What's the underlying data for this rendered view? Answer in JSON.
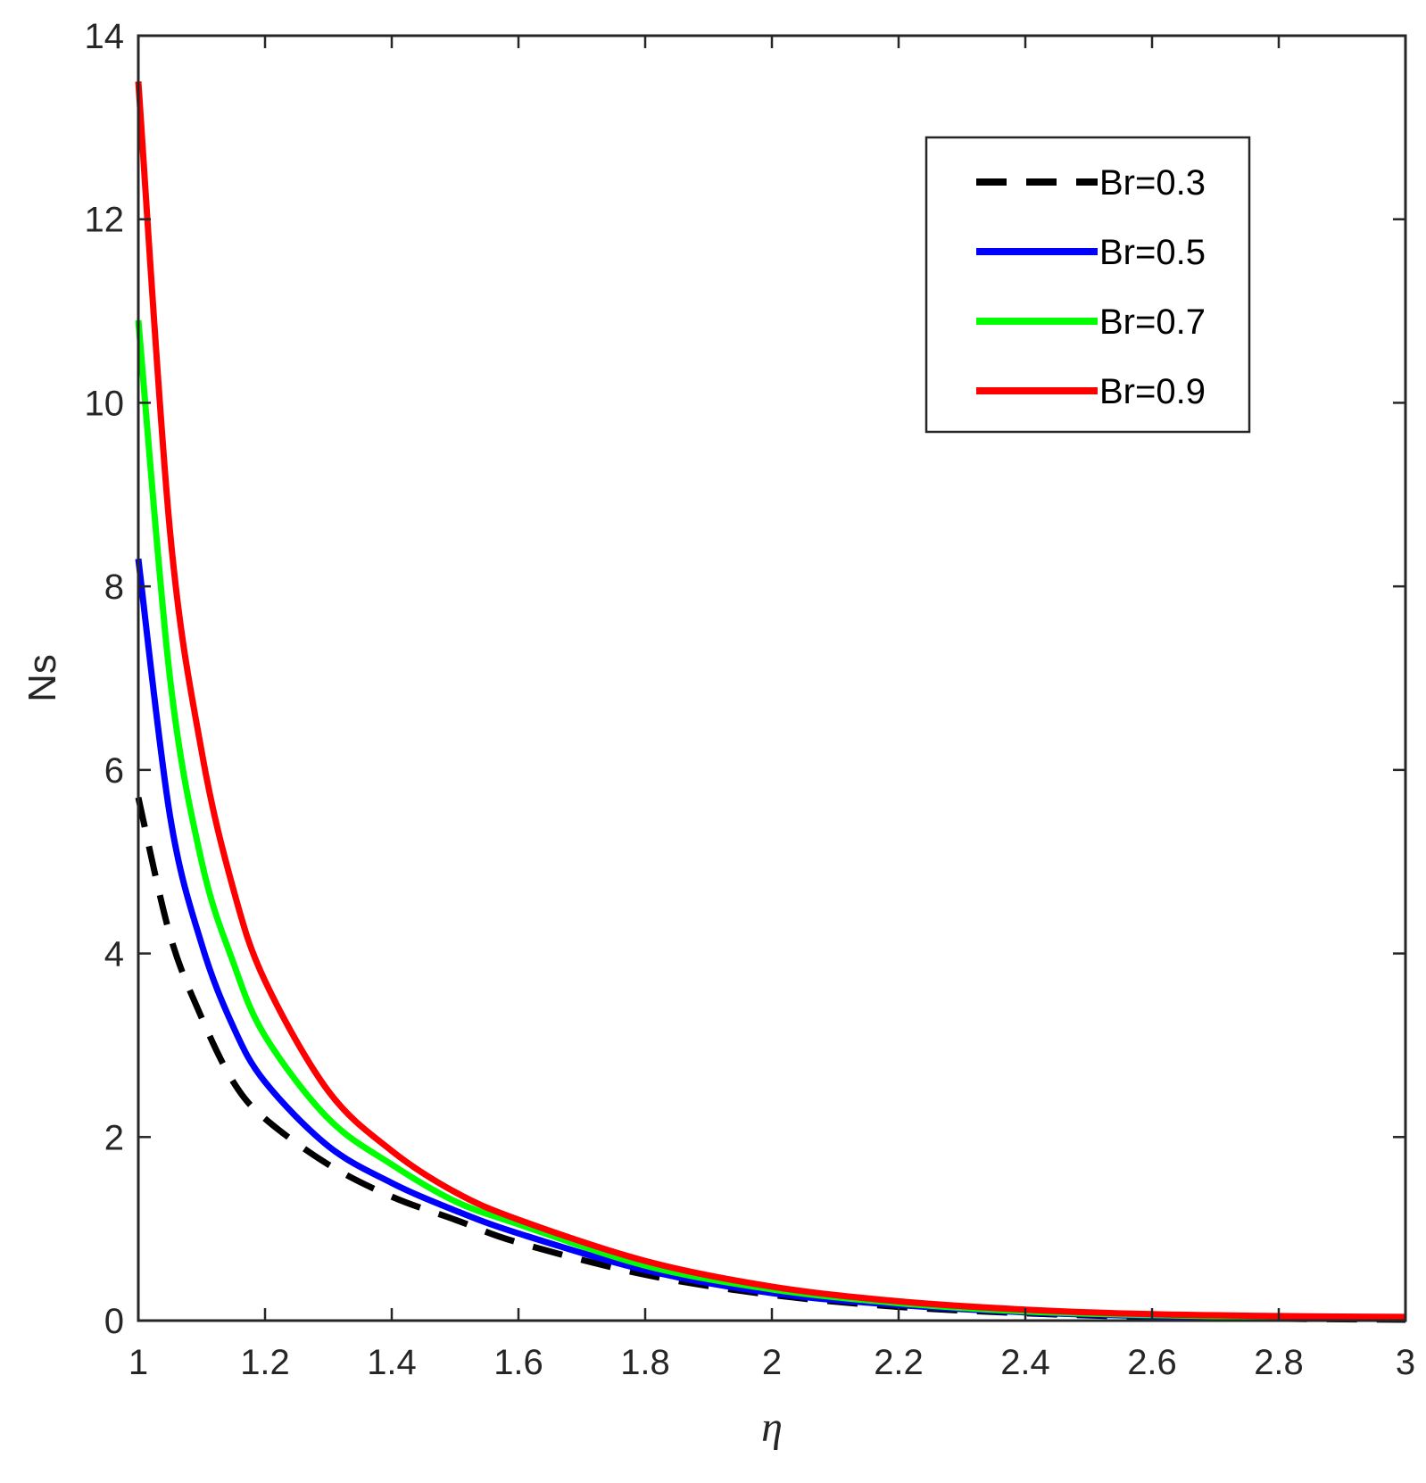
{
  "chart_data": {
    "type": "line",
    "title": "",
    "xlabel": "η",
    "ylabel": "Ns",
    "xlim": [
      1,
      3
    ],
    "ylim": [
      0,
      14
    ],
    "grid": false,
    "legend_placement": "top-right",
    "x_ticks": [
      "1",
      "1.2",
      "1.4",
      "1.6",
      "1.8",
      "2",
      "2.2",
      "2.4",
      "2.6",
      "2.8",
      "3"
    ],
    "y_ticks": [
      "0",
      "2",
      "4",
      "6",
      "8",
      "10",
      "12",
      "14"
    ],
    "x": [
      1.0,
      1.05,
      1.1,
      1.15,
      1.2,
      1.3,
      1.4,
      1.5,
      1.6,
      1.8,
      2.0,
      2.2,
      2.4,
      2.6,
      2.8,
      3.0
    ],
    "series": [
      {
        "name": "Br=0.3",
        "color": "#000000",
        "dash": true,
        "values": [
          5.7,
          4.2,
          3.3,
          2.6,
          2.2,
          1.7,
          1.35,
          1.1,
          0.85,
          0.5,
          0.28,
          0.15,
          0.08,
          0.04,
          0.02,
          0.01
        ]
      },
      {
        "name": "Br=0.5",
        "color": "#0000ff",
        "dash": false,
        "values": [
          8.3,
          5.5,
          4.1,
          3.2,
          2.6,
          1.9,
          1.5,
          1.2,
          0.95,
          0.55,
          0.3,
          0.17,
          0.09,
          0.05,
          0.03,
          0.02
        ]
      },
      {
        "name": "Br=0.7",
        "color": "#00ff00",
        "dash": false,
        "values": [
          10.9,
          7.0,
          5.0,
          3.9,
          3.1,
          2.2,
          1.7,
          1.3,
          1.05,
          0.6,
          0.34,
          0.19,
          0.1,
          0.06,
          0.04,
          0.03
        ]
      },
      {
        "name": "Br=0.9",
        "color": "#ff0000",
        "dash": false,
        "values": [
          13.5,
          8.6,
          6.2,
          4.7,
          3.7,
          2.5,
          1.85,
          1.4,
          1.1,
          0.65,
          0.37,
          0.21,
          0.12,
          0.07,
          0.05,
          0.04
        ]
      }
    ]
  }
}
